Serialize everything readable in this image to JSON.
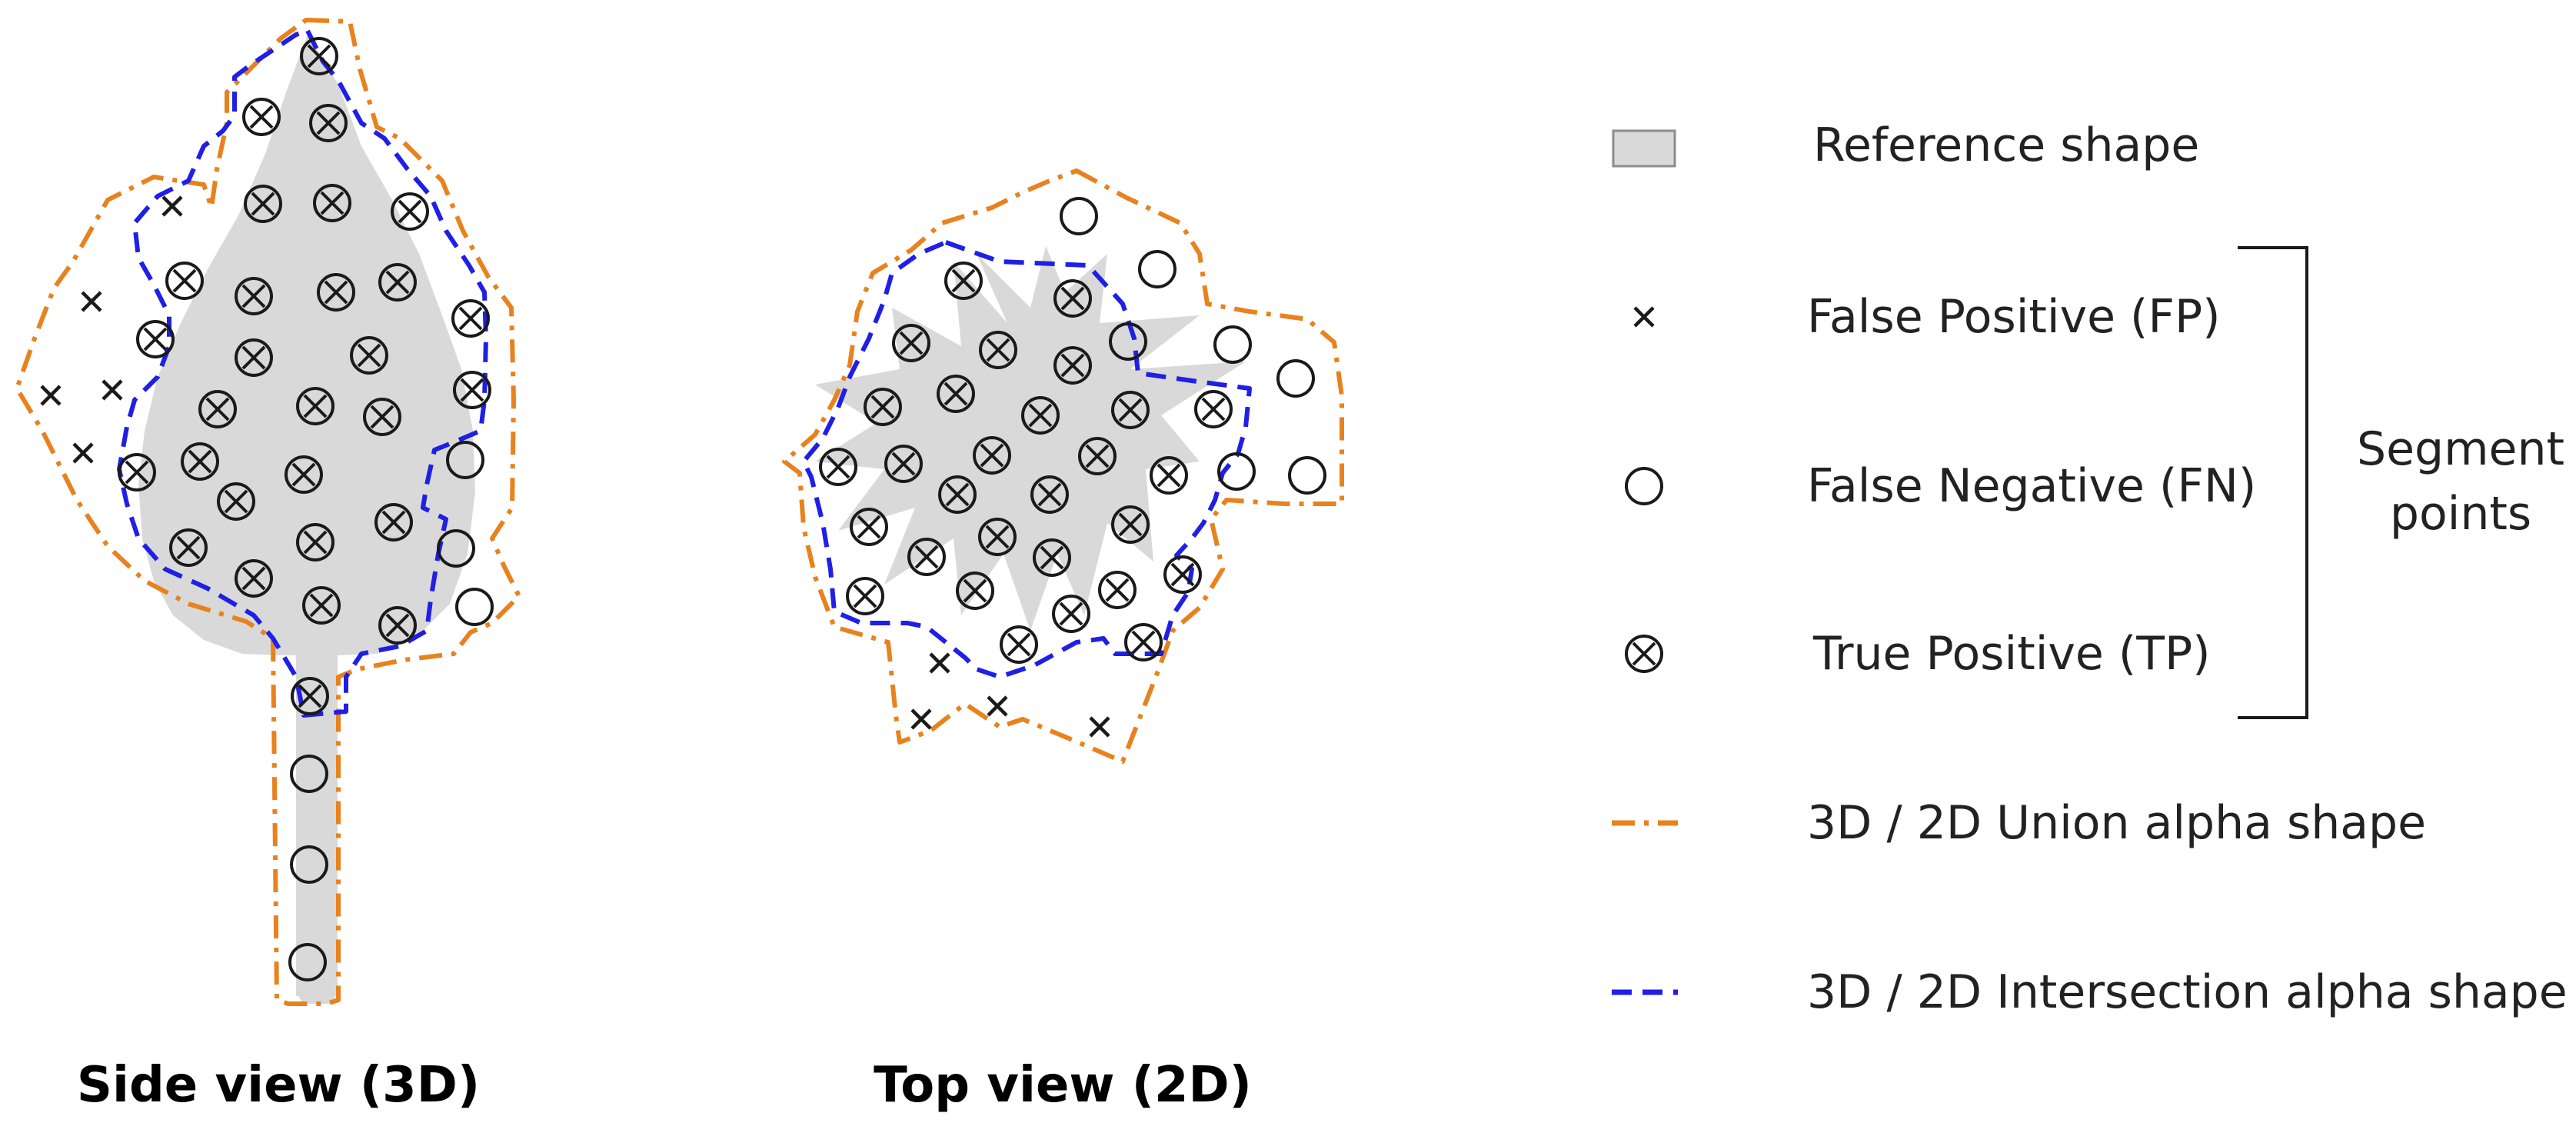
{
  "colors": {
    "reference_fill": "#d9d9d9",
    "union_line": "#e8821e",
    "intersection_line": "#1f1fe6",
    "marker": "#1a1a1a"
  },
  "titles": {
    "side_view": "Side view (3D)",
    "top_view": "Top view (2D)"
  },
  "legend": {
    "reference_shape": "Reference shape",
    "false_positive": "False Positive (FP)",
    "false_negative": "False Negative (FN)",
    "true_positive": "True Positive (TP)",
    "union_shape": "3D / 2D Union alpha shape",
    "intersection_shape": "3D / 2D Intersection alpha shape",
    "bracket_label_line1": "Segment",
    "bracket_label_line2": "points"
  }
}
